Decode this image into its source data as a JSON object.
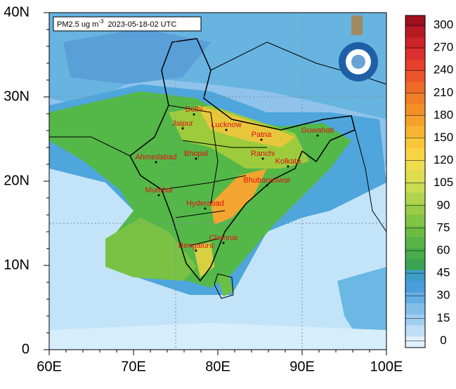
{
  "map": {
    "title_var": "PM2.5 ug m",
    "title_sup": "-3",
    "title_time": "2023-05-18-02 UTC",
    "lat_labels": [
      "40N",
      "30N",
      "20N",
      "10N",
      "0"
    ],
    "lon_labels": [
      "60E",
      "70E",
      "80E",
      "90E",
      "100E"
    ],
    "cities": [
      "Delhi",
      "Jaipur",
      "Lucknow",
      "Patna",
      "Guwahati",
      "Ahmedabad",
      "Bhopal",
      "Ranchi",
      "Kolkata",
      "Bhubaneswar",
      "Mumbai",
      "Hyderabad",
      "Chennai",
      "Bengaluru"
    ],
    "colorbar_labels": [
      "300",
      "270",
      "240",
      "210",
      "180",
      "150",
      "120",
      "105",
      "90",
      "75",
      "60",
      "45",
      "30",
      "15",
      "0"
    ]
  }
}
